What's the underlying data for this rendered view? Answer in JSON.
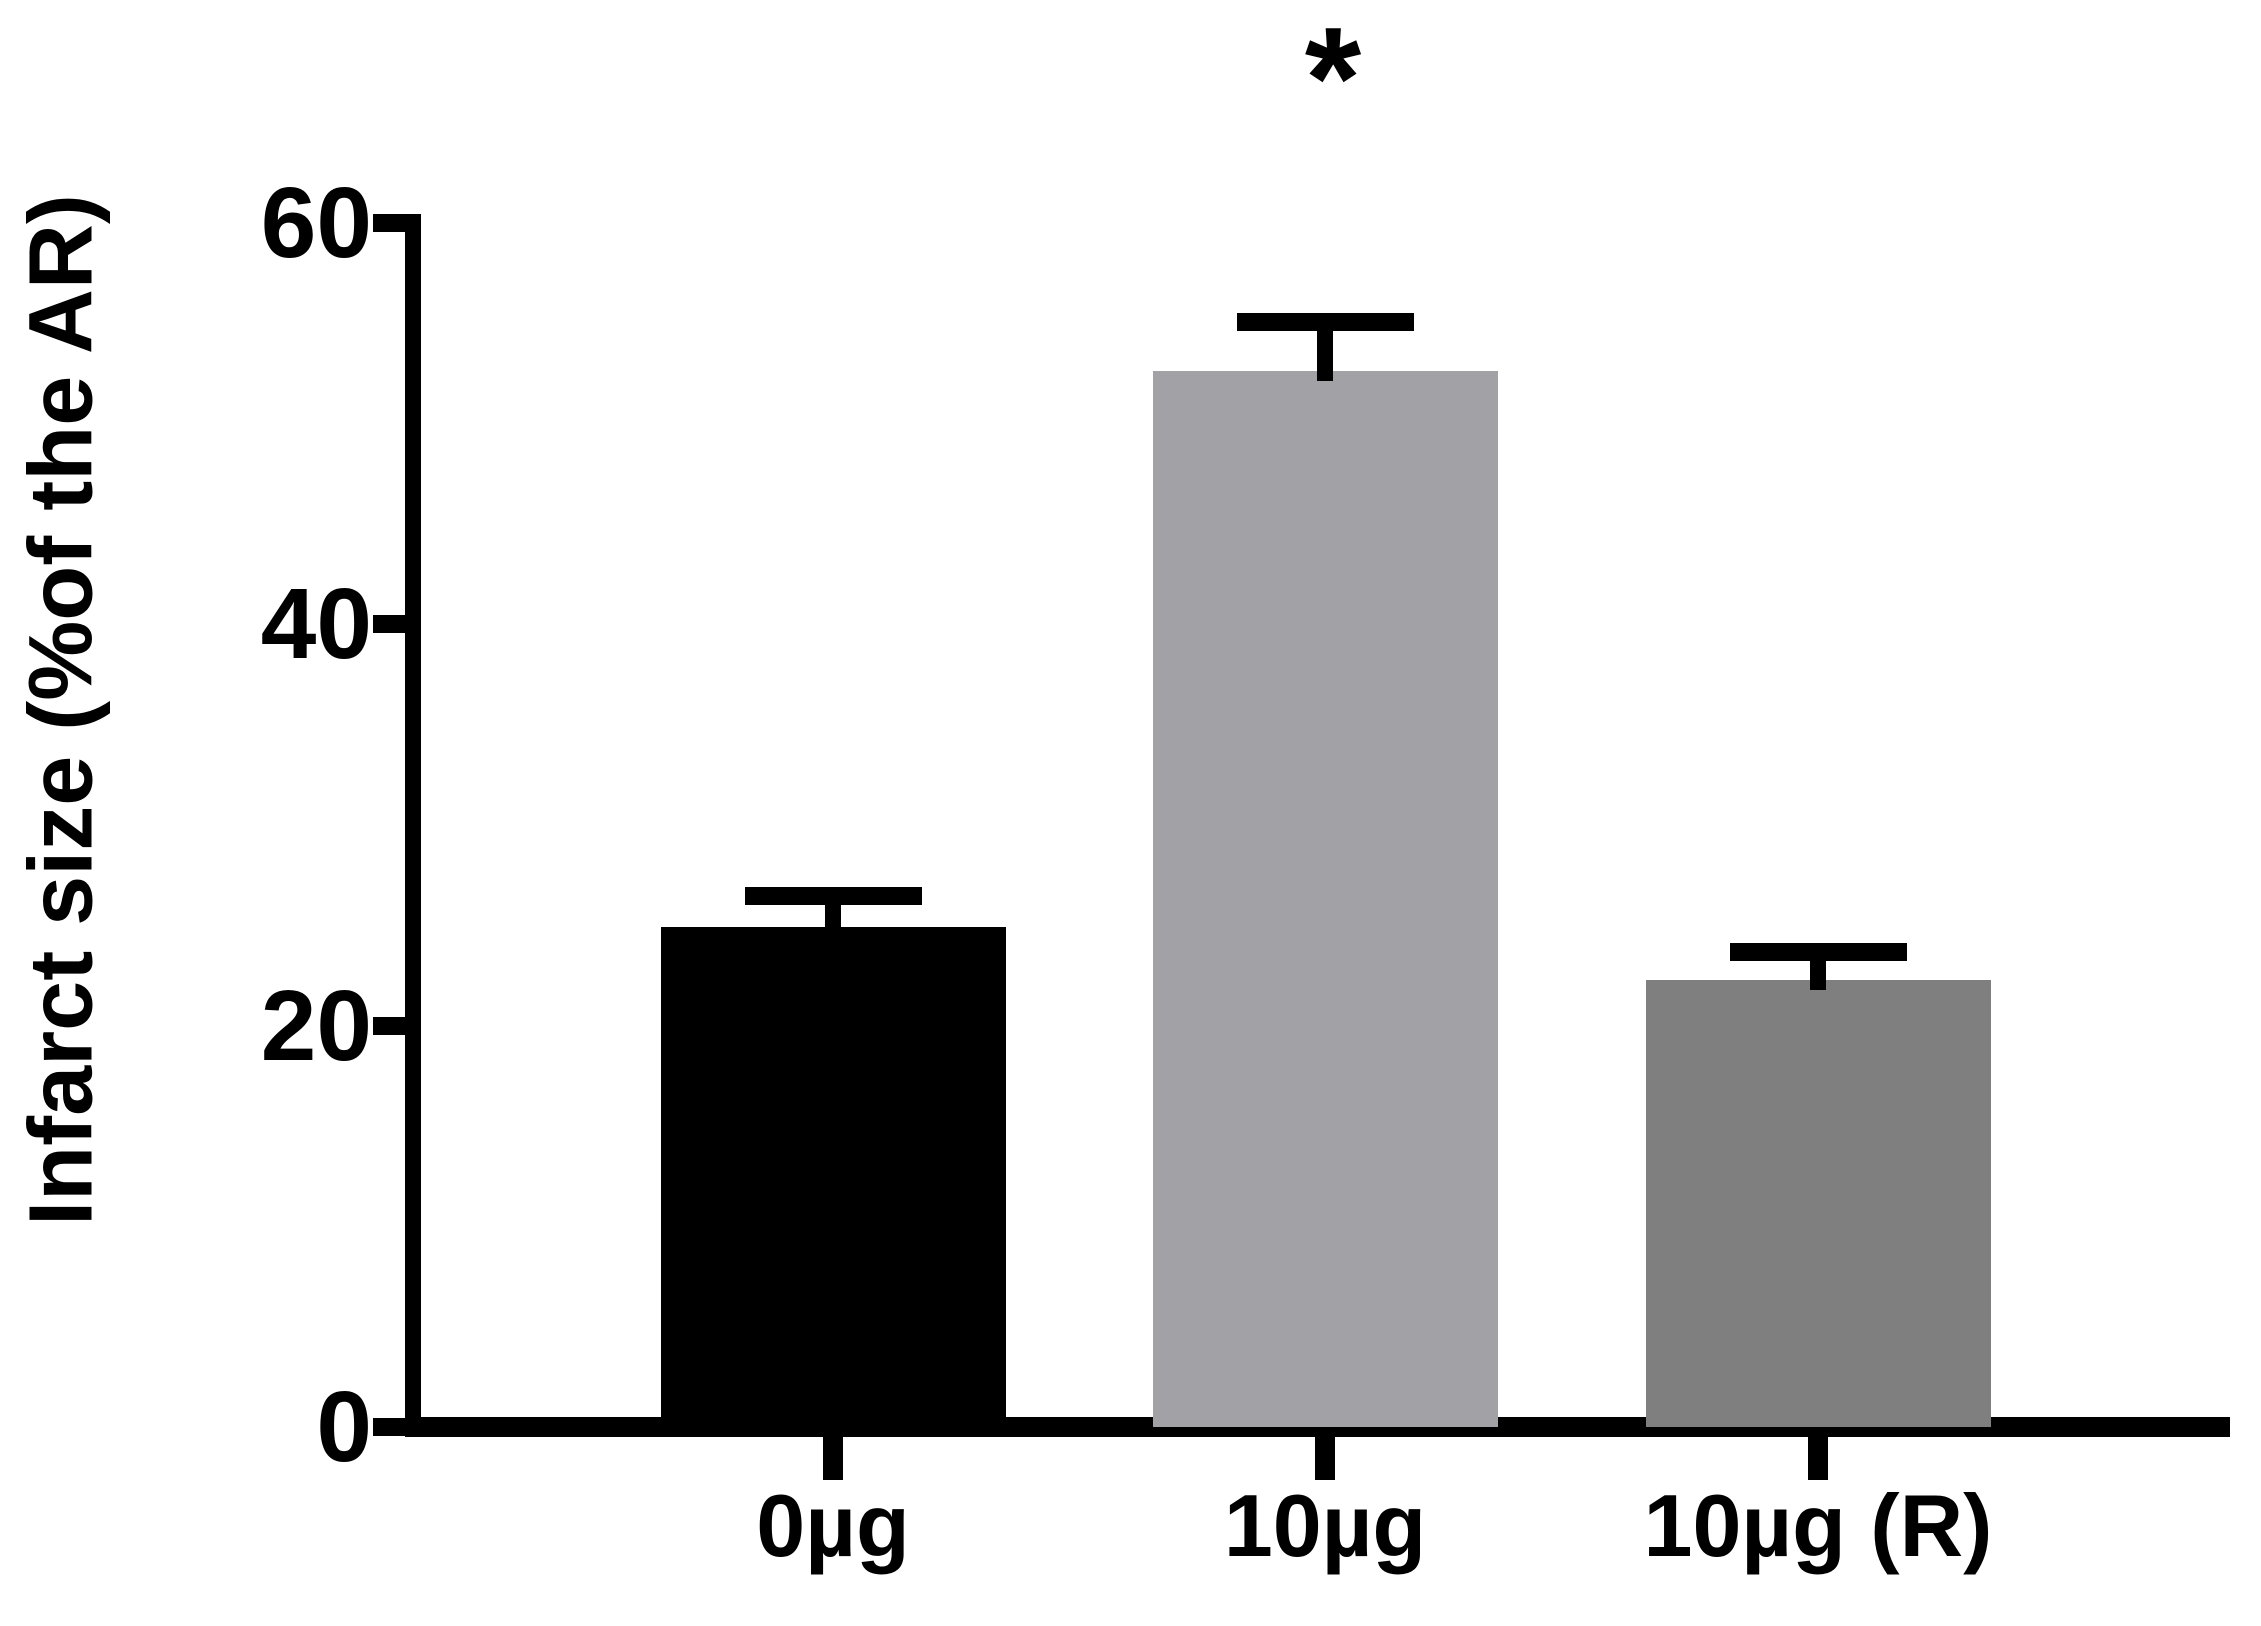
{
  "chart_data": {
    "type": "bar",
    "title": "",
    "xlabel": "",
    "ylabel": "Infarct size (%of the AR)",
    "categories": [
      "0µg",
      "10µg",
      "10µg (R)"
    ],
    "series": [
      {
        "values": [
          24.9,
          52.6,
          22.3
        ],
        "errors_plus": [
          2.0,
          2.9,
          1.8
        ]
      }
    ],
    "bar_colors": [
      "#000000",
      "#a2a2a6",
      "#7f7f7f"
    ],
    "error_bar_color": "#000000",
    "axis_color": "#000000",
    "background": "#ffffff",
    "ylim": [
      0,
      60
    ],
    "yticks": [
      0,
      20,
      40,
      60
    ],
    "ytick_labels": [
      "0",
      "20",
      "40",
      "60"
    ],
    "grid": false,
    "legend": false,
    "annotations": [
      {
        "text": "*",
        "above_category": "10µg"
      }
    ]
  }
}
